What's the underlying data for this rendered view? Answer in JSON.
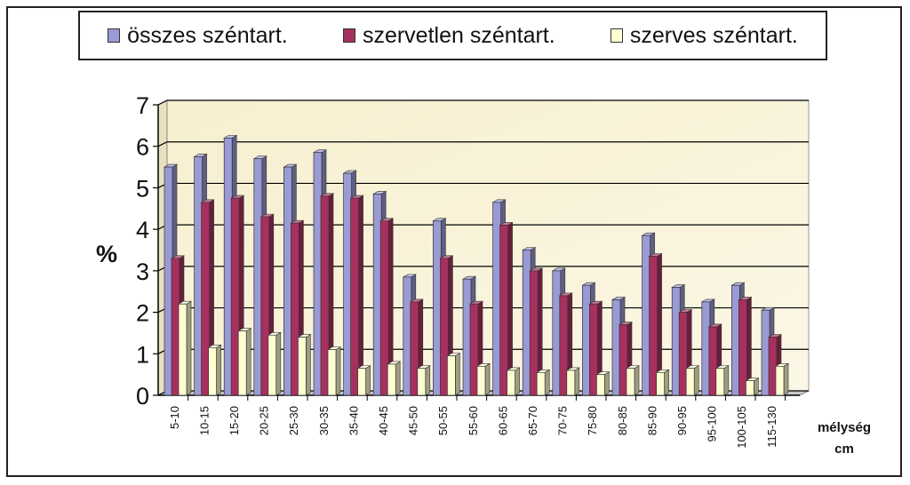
{
  "chart_data": {
    "type": "bar",
    "title": "",
    "ylabel": "%",
    "xlabel_line1": "mélység",
    "xlabel_line2": "cm",
    "ylim": [
      0,
      7
    ],
    "yticks": [
      0,
      1,
      2,
      3,
      4,
      5,
      6,
      7
    ],
    "grid": true,
    "legend": "top",
    "categories": [
      "5-10",
      "10-15",
      "15-20",
      "20-25",
      "25-30",
      "30-35",
      "35-40",
      "40-45",
      "45-50",
      "50-55",
      "55-60",
      "60-65",
      "65-70",
      "70-75",
      "75-80",
      "80-85",
      "85-90",
      "90-95",
      "95-100",
      "100-105",
      "115-130"
    ],
    "series": [
      {
        "name": "összes széntart.",
        "color": "#9a9ad4",
        "values": [
          5.5,
          5.75,
          6.2,
          5.7,
          5.5,
          5.85,
          5.35,
          4.85,
          2.85,
          4.2,
          2.8,
          4.65,
          3.5,
          3.0,
          2.65,
          2.3,
          3.85,
          2.6,
          2.25,
          2.65,
          2.05
        ]
      },
      {
        "name": "szervetlen széntart.",
        "color": "#a8305e",
        "values": [
          3.3,
          4.65,
          4.75,
          4.3,
          4.15,
          4.8,
          4.75,
          4.2,
          2.25,
          3.3,
          2.2,
          4.1,
          3.0,
          2.4,
          2.2,
          1.7,
          3.35,
          2.0,
          1.65,
          2.3,
          1.4
        ]
      },
      {
        "name": "szerves széntart.",
        "color": "#ffffd2",
        "values": [
          2.2,
          1.15,
          1.55,
          1.45,
          1.4,
          1.1,
          0.65,
          0.75,
          0.65,
          0.95,
          0.7,
          0.6,
          0.55,
          0.6,
          0.5,
          0.65,
          0.55,
          0.65,
          0.65,
          0.35,
          0.7
        ]
      }
    ]
  }
}
